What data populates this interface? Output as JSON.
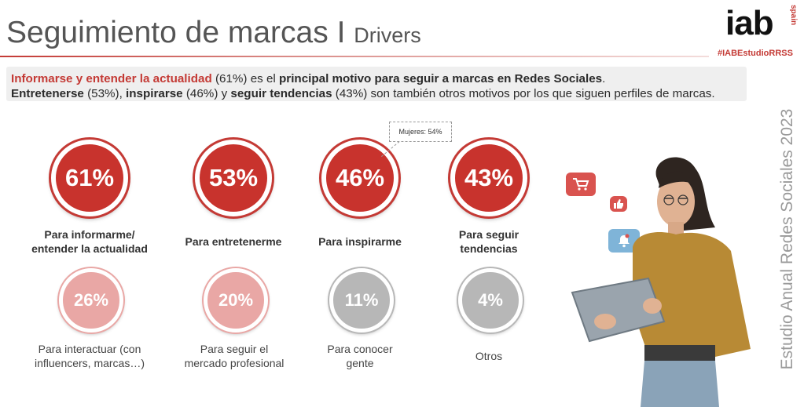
{
  "header": {
    "title": "Seguimiento de marcas",
    "separator": "I",
    "subtitle": "Drivers",
    "logo": "iab",
    "logo_region": "spain",
    "hashtag": "#IABEstudioRRSS",
    "side_text": "Estudio Anual Redes Sociales 2023"
  },
  "summary": {
    "line1_a": "Informarse y entender la actualidad",
    "line1_b": " (61%) es el ",
    "line1_c": "principal motivo para seguir a marcas en Redes Sociales",
    "line1_d": ".",
    "line2_a": "Entretenerse",
    "line2_b": " (53%), ",
    "line2_c": "inspirarse",
    "line2_d": " (46%) y ",
    "line2_e": "seguir tendencias",
    "line2_f": " (43%) son también otros motivos por los que siguen perfiles de marcas."
  },
  "callout": "Mujeres: 54%",
  "chart_data": {
    "type": "bar",
    "categories": [
      "Para informarme/ entender la actualidad",
      "Para entretenerme",
      "Para inspirarme",
      "Para seguir tendencias",
      "Para interactuar (con influencers, marcas…)",
      "Para seguir el mercado profesional",
      "Para conocer gente",
      "Otros"
    ],
    "values": [
      61,
      53,
      46,
      43,
      26,
      20,
      11,
      4
    ],
    "unit": "%",
    "annotations": [
      {
        "category": "Para inspirarme",
        "text": "Mujeres: 54%"
      }
    ],
    "colors": {
      "top": "#c8332d",
      "mid": "#e9a7a5",
      "low": "#b7b7b7"
    }
  },
  "items": [
    {
      "value": "61%",
      "label_lines": [
        "Para informarme/",
        "entender la actualidad"
      ]
    },
    {
      "value": "53%",
      "label_lines": [
        "Para entretenerme"
      ]
    },
    {
      "value": "46%",
      "label_lines": [
        "Para inspirarme"
      ]
    },
    {
      "value": "43%",
      "label_lines": [
        "Para seguir",
        "tendencias"
      ]
    },
    {
      "value": "26%",
      "label_lines": [
        "Para interactuar (con",
        "influencers, marcas…)"
      ]
    },
    {
      "value": "20%",
      "label_lines": [
        "Para seguir el",
        "mercado profesional"
      ]
    },
    {
      "value": "11%",
      "label_lines": [
        "Para conocer",
        "gente"
      ]
    },
    {
      "value": "4%",
      "label_lines": [
        "Otros"
      ]
    }
  ],
  "icons": [
    "shopping-cart-icon",
    "thumbs-up-icon",
    "bell-icon"
  ]
}
